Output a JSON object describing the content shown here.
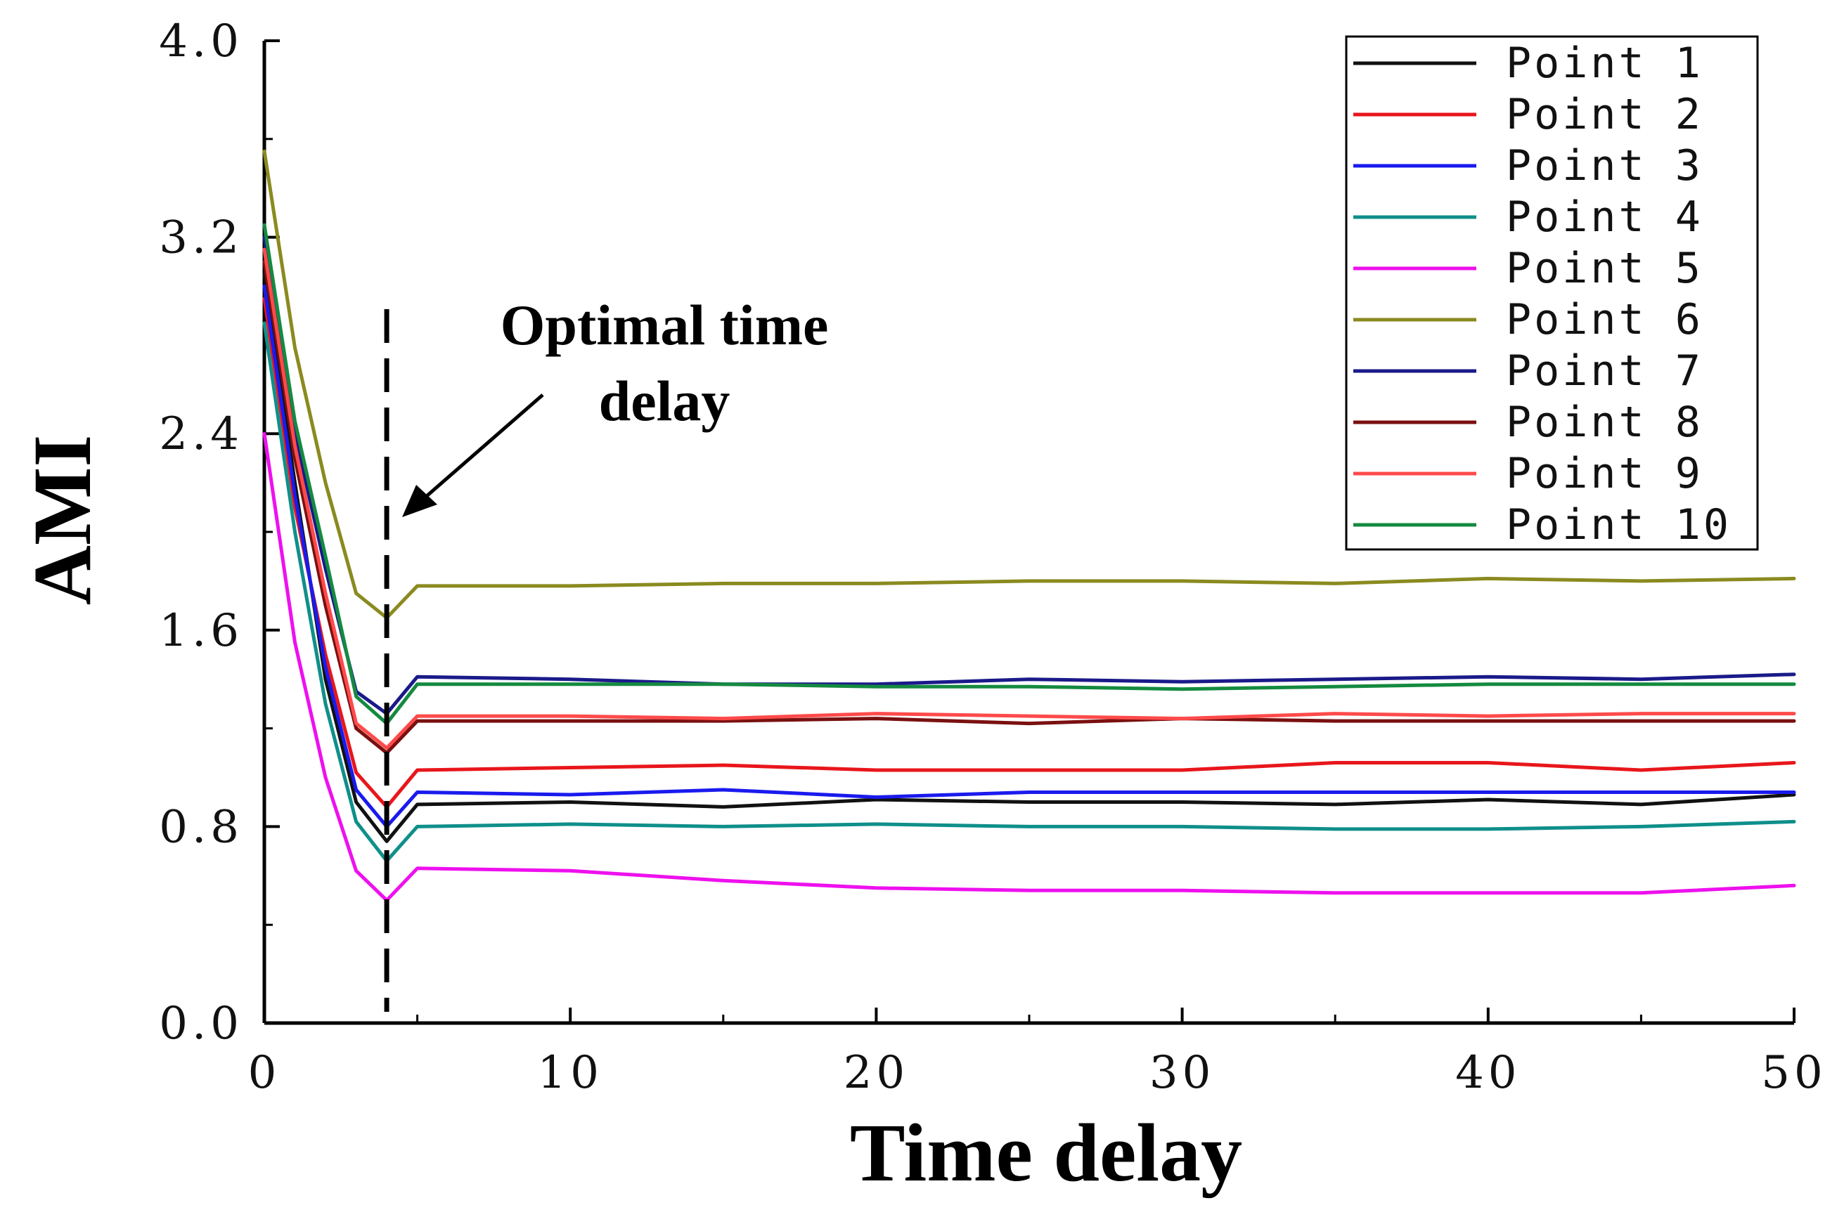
{
  "chart_data": {
    "type": "line",
    "title": "",
    "xlabel": "Time delay",
    "ylabel": "AMI",
    "xlim": [
      0,
      50
    ],
    "ylim": [
      0.0,
      4.0
    ],
    "xticks": [
      0,
      10,
      20,
      30,
      40,
      50
    ],
    "xtick_labels": [
      "0",
      "10",
      "20",
      "30",
      "40",
      "50"
    ],
    "yticks": [
      0.0,
      0.8,
      1.6,
      2.4,
      3.2,
      4.0
    ],
    "ytick_labels": [
      "0.0",
      "0.8",
      "1.6",
      "2.4",
      "3.2",
      "4.0"
    ],
    "grid": false,
    "legend_position": "top-right",
    "annotation": {
      "line1": "Optimal time",
      "line2": "delay",
      "vline_x": 4
    },
    "x": [
      0,
      1,
      2,
      3,
      4,
      5,
      10,
      15,
      20,
      25,
      30,
      35,
      40,
      45,
      50
    ],
    "series": [
      {
        "name": "Point 1",
        "color": "#111111",
        "values": [
          3.05,
          2.2,
          1.4,
          0.9,
          0.74,
          0.89,
          0.9,
          0.88,
          0.91,
          0.9,
          0.9,
          0.89,
          0.91,
          0.89,
          0.93
        ]
      },
      {
        "name": "Point 2",
        "color": "#e8161b",
        "values": [
          2.95,
          2.1,
          1.5,
          1.02,
          0.88,
          1.03,
          1.04,
          1.05,
          1.03,
          1.03,
          1.03,
          1.06,
          1.06,
          1.03,
          1.06
        ]
      },
      {
        "name": "Point 3",
        "color": "#1a1aee",
        "values": [
          3.0,
          2.15,
          1.45,
          0.95,
          0.8,
          0.94,
          0.93,
          0.95,
          0.92,
          0.94,
          0.94,
          0.94,
          0.94,
          0.94,
          0.94
        ]
      },
      {
        "name": "Point 4",
        "color": "#0f8f8a",
        "values": [
          2.85,
          2.0,
          1.3,
          0.82,
          0.66,
          0.8,
          0.81,
          0.8,
          0.81,
          0.8,
          0.8,
          0.79,
          0.79,
          0.8,
          0.82
        ]
      },
      {
        "name": "Point 5",
        "color": "#ee10ee",
        "values": [
          2.4,
          1.55,
          1.0,
          0.62,
          0.5,
          0.63,
          0.62,
          0.58,
          0.55,
          0.54,
          0.54,
          0.53,
          0.53,
          0.53,
          0.56
        ]
      },
      {
        "name": "Point 6",
        "color": "#8a8a20",
        "values": [
          3.55,
          2.75,
          2.2,
          1.75,
          1.65,
          1.78,
          1.78,
          1.79,
          1.79,
          1.8,
          1.8,
          1.79,
          1.81,
          1.8,
          1.81
        ]
      },
      {
        "name": "Point 7",
        "color": "#1a1a8a",
        "values": [
          3.2,
          2.4,
          1.85,
          1.35,
          1.26,
          1.41,
          1.4,
          1.38,
          1.38,
          1.4,
          1.39,
          1.4,
          1.41,
          1.4,
          1.42
        ]
      },
      {
        "name": "Point 8",
        "color": "#7a1010",
        "values": [
          3.1,
          2.3,
          1.7,
          1.2,
          1.1,
          1.23,
          1.23,
          1.23,
          1.24,
          1.22,
          1.24,
          1.23,
          1.23,
          1.23,
          1.23
        ]
      },
      {
        "name": "Point 9",
        "color": "#ff4a4a",
        "values": [
          3.15,
          2.35,
          1.75,
          1.22,
          1.12,
          1.25,
          1.25,
          1.24,
          1.26,
          1.25,
          1.24,
          1.26,
          1.25,
          1.26,
          1.26
        ]
      },
      {
        "name": "Point 10",
        "color": "#158a40",
        "values": [
          3.25,
          2.45,
          1.9,
          1.33,
          1.22,
          1.38,
          1.38,
          1.38,
          1.37,
          1.37,
          1.36,
          1.37,
          1.38,
          1.38,
          1.38
        ]
      }
    ]
  }
}
